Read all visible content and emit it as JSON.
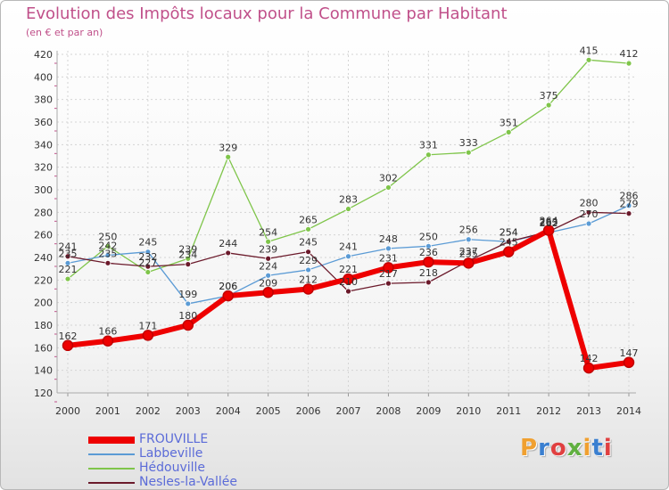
{
  "header": {
    "title": "Evolution des Impôts locaux pour la Commune par Habitant",
    "subtitle": "(en € et par an)"
  },
  "logo": {
    "text": "Proxiti",
    "colors": [
      "#f0a030",
      "#3a7fd0",
      "#e04040",
      "#60b040",
      "#f0a030",
      "#3a7fd0",
      "#e04040"
    ]
  },
  "chart_data": {
    "type": "line",
    "title": "Evolution des Impôts locaux pour la Commune par Habitant",
    "subtitle": "(en € et par an)",
    "xlabel": "",
    "ylabel": "",
    "ylim": [
      120,
      420
    ],
    "yticks": [
      120,
      140,
      160,
      180,
      200,
      220,
      240,
      260,
      280,
      300,
      320,
      340,
      360,
      380,
      400,
      420
    ],
    "grid": true,
    "legend_position": "bottom-left",
    "categories": [
      "2000",
      "2001",
      "2002",
      "2003",
      "2004",
      "2005",
      "2006",
      "2007",
      "2008",
      "2009",
      "2010",
      "2011",
      "2012",
      "2013",
      "2014"
    ],
    "series": [
      {
        "name": "Hédouville",
        "color": "#7fc54a",
        "values": [
          221,
          250,
          227,
          239,
          329,
          254,
          265,
          283,
          302,
          331,
          333,
          351,
          375,
          415,
          412
        ]
      },
      {
        "name": "Labbeville",
        "color": "#5b9bd5",
        "values": [
          235,
          242,
          245,
          199,
          206,
          224,
          229,
          241,
          248,
          250,
          256,
          254,
          262,
          270,
          286
        ]
      },
      {
        "name": "Nesles-la-Vallée",
        "color": "#6b1a2b",
        "values": [
          241,
          235,
          232,
          234,
          244,
          239,
          245,
          210,
          217,
          218,
          237,
          254,
          263,
          280,
          279
        ]
      },
      {
        "name": "FROUVILLE",
        "color": "#ee0000",
        "values": [
          162,
          166,
          171,
          180,
          206,
          209,
          212,
          221,
          231,
          236,
          235,
          245,
          264,
          142,
          147
        ]
      }
    ],
    "legend": [
      "FROUVILLE",
      "Labbeville",
      "Hédouville",
      "Nesles-la-Vallée"
    ]
  }
}
